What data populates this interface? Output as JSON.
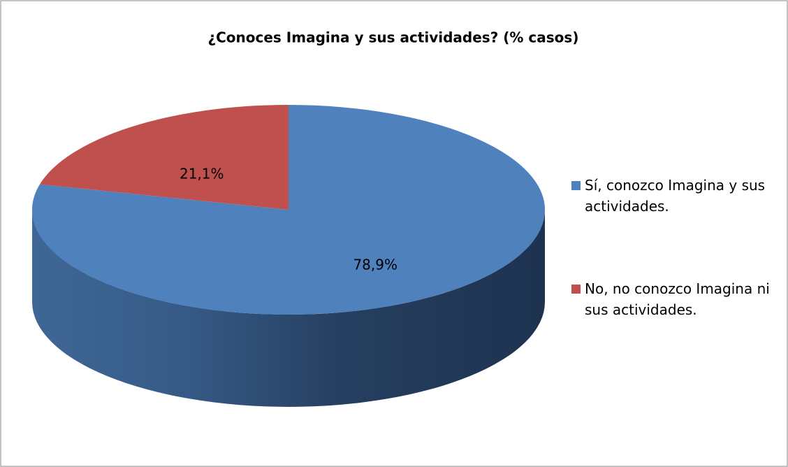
{
  "chart_data": {
    "type": "pie3d",
    "title": "¿Conoces Imagina y sus actividades? (% casos)",
    "categories": [
      "Sí, conozco Imagina y sus actividades.",
      "No, no conozco Imagina ni sus actividades."
    ],
    "values": [
      78.9,
      21.1
    ],
    "value_labels": [
      "78,9%",
      "21,1%"
    ],
    "colors": [
      "#4f81bd",
      "#c0504d"
    ],
    "legend": "right"
  }
}
